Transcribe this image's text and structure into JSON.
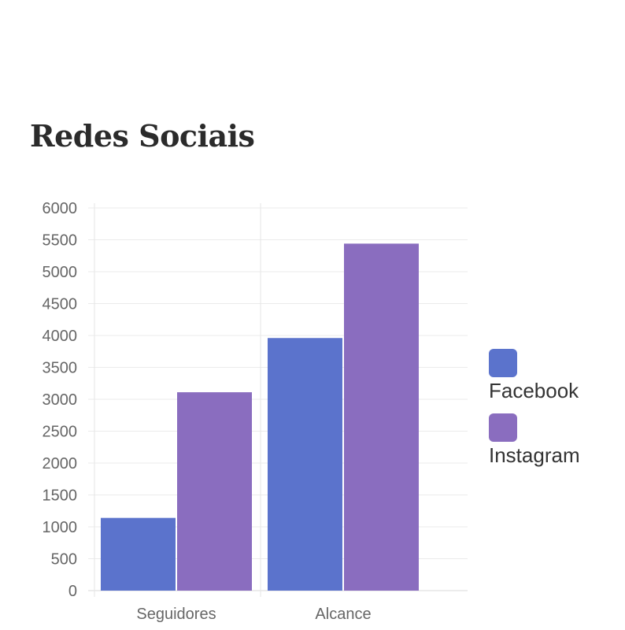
{
  "title": "Redes Sociais",
  "chart_data": {
    "type": "bar",
    "title": "Redes Sociais",
    "categories": [
      "Seguidores",
      "Alcance"
    ],
    "series": [
      {
        "name": "Facebook",
        "color": "#5b73cc",
        "values": [
          1140,
          3960
        ]
      },
      {
        "name": "Instagram",
        "color": "#8a6dbf",
        "values": [
          3110,
          5440
        ]
      }
    ],
    "ylim": [
      0,
      6000
    ],
    "yticks": [
      0,
      500,
      1000,
      1500,
      2000,
      2500,
      3000,
      3500,
      4000,
      4500,
      5000,
      5500,
      6000
    ],
    "grid": true,
    "legend_position": "right"
  }
}
